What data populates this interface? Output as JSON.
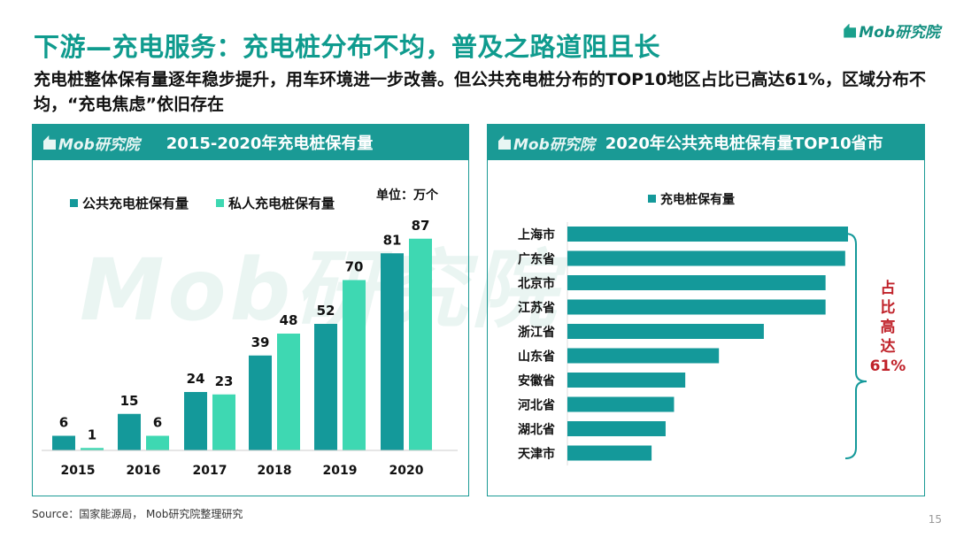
{
  "header": {
    "title": "下游—充电服务：充电桩分布不均，普及之路道阻且长",
    "subtitle": "充电桩整体保有量逐年稳步提升，用车环境进一步改善。但公共充电桩分布的TOP10地区占比已高达61%，区域分布不均，“充电焦虑”依旧存在",
    "logo": "Mob研究院"
  },
  "watermark": "Mob研究院",
  "colors": {
    "accent": "#0f9b8e",
    "public": "#14999a",
    "private": "#3ed8b2",
    "highlight": "#c0222a"
  },
  "chart_data": [
    {
      "type": "bar",
      "title": "2015-2020年充电桩保有量",
      "unit_label": "单位：万个",
      "categories": [
        "2015",
        "2016",
        "2017",
        "2018",
        "2019",
        "2020"
      ],
      "series": [
        {
          "name": "公共充电桩保有量",
          "values": [
            6,
            15,
            24,
            39,
            52,
            81
          ]
        },
        {
          "name": "私人充电桩保有量",
          "values": [
            1,
            6,
            23,
            48,
            70,
            87
          ]
        }
      ],
      "legend": "top-left",
      "grid": false,
      "ylim": [
        0,
        90
      ]
    },
    {
      "type": "bar",
      "orientation": "horizontal",
      "title": "2020年公共充电桩保有量TOP10省市",
      "categories": [
        "上海市",
        "广东省",
        "北京市",
        "江苏省",
        "浙江省",
        "山东省",
        "安徽省",
        "河北省",
        "湖北省",
        "天津市"
      ],
      "series": [
        {
          "name": "充电桩保有量",
          "values": [
            100,
            99,
            92,
            92,
            70,
            54,
            42,
            38,
            35,
            30
          ]
        }
      ],
      "annotation": {
        "lines": [
          "占",
          "比",
          "高",
          "达",
          "61%"
        ]
      },
      "legend": "top",
      "grid": false
    }
  ],
  "footer": {
    "source": "Source：国家能源局， Mob研究院整理研究",
    "page": "15"
  }
}
